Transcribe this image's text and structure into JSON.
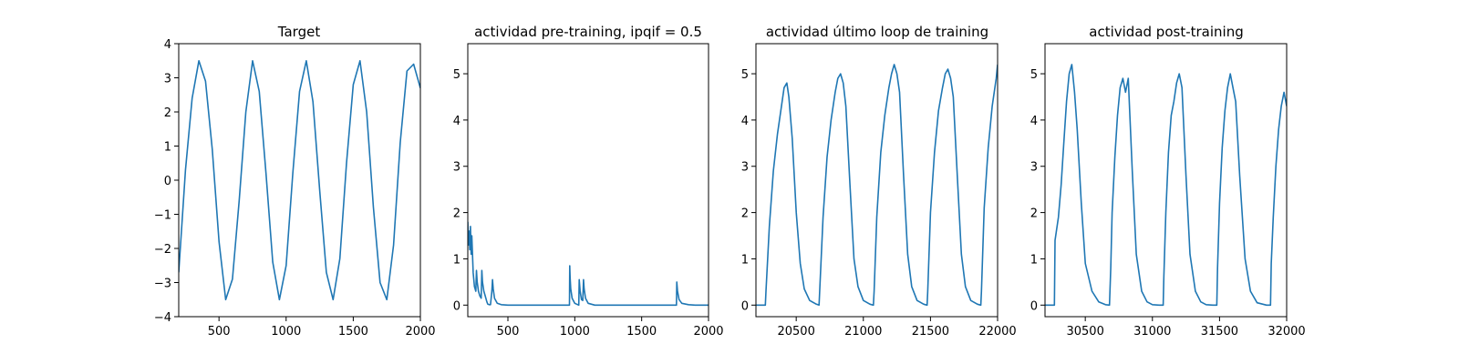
{
  "figure": {
    "background": "#ffffff",
    "line_color": "#1f77b4"
  },
  "chart_data": [
    {
      "type": "line",
      "title": "Target",
      "xlabel": "",
      "ylabel": "",
      "xlim": [
        200,
        2000
      ],
      "ylim": [
        -4,
        4
      ],
      "xticks": [
        500,
        1000,
        1500,
        2000
      ],
      "yticks": [
        -4,
        -3,
        -2,
        -1,
        0,
        1,
        2,
        3,
        4
      ],
      "xtick_labels": [
        "500",
        "1000",
        "1500",
        "2000"
      ],
      "ytick_labels": [
        "−4",
        "−3",
        "−2",
        "−1",
        "0",
        "1",
        "2",
        "3",
        "4"
      ],
      "series": [
        {
          "x": [
            200,
            250,
            300,
            350,
            400,
            450,
            500,
            550,
            600,
            650,
            700,
            750,
            800,
            850,
            900,
            950,
            1000,
            1050,
            1100,
            1150,
            1200,
            1250,
            1300,
            1350,
            1400,
            1450,
            1500,
            1550,
            1600,
            1650,
            1700,
            1750,
            1800,
            1850,
            1900,
            1950,
            2000
          ],
          "y": [
            -2.7,
            0.3,
            2.4,
            3.5,
            2.9,
            0.9,
            -1.8,
            -3.5,
            -2.9,
            -0.6,
            2.0,
            3.5,
            2.6,
            0.2,
            -2.4,
            -3.5,
            -2.5,
            0.2,
            2.6,
            3.5,
            2.3,
            -0.3,
            -2.7,
            -3.5,
            -2.3,
            0.5,
            2.8,
            3.5,
            2.0,
            -0.8,
            -3.0,
            -3.5,
            -1.9,
            1.1,
            3.2,
            3.4,
            2.7
          ]
        }
      ]
    },
    {
      "type": "line",
      "title": "actividad pre-training, ipqif = 0.5",
      "xlabel": "",
      "ylabel": "",
      "xlim": [
        200,
        2000
      ],
      "ylim": [
        -0.25,
        5.65
      ],
      "xticks": [
        500,
        1000,
        1500,
        2000
      ],
      "yticks": [
        0,
        1,
        2,
        3,
        4,
        5
      ],
      "xtick_labels": [
        "500",
        "1000",
        "1500",
        "2000"
      ],
      "ytick_labels": [
        "0",
        "1",
        "2",
        "3",
        "4",
        "5"
      ],
      "series": [
        {
          "x": [
            200,
            205,
            210,
            215,
            220,
            225,
            230,
            240,
            250,
            260,
            265,
            270,
            280,
            290,
            300,
            305,
            310,
            320,
            330,
            340,
            345,
            350,
            360,
            370,
            380,
            385,
            390,
            400,
            420,
            450,
            500,
            600,
            700,
            800,
            900,
            960,
            962,
            965,
            970,
            980,
            1000,
            1030,
            1033,
            1040,
            1050,
            1060,
            1065,
            1070,
            1080,
            1100,
            1150,
            1200,
            1400,
            1600,
            1760,
            1763,
            1768,
            1780,
            1800,
            1850,
            1900,
            2000
          ],
          "y": [
            1.8,
            1.3,
            1.6,
            1.2,
            1.7,
            1.1,
            1.5,
            0.7,
            0.4,
            0.3,
            0.75,
            0.5,
            0.3,
            0.2,
            0.15,
            0.75,
            0.5,
            0.3,
            0.2,
            0.1,
            0.05,
            0.02,
            0.01,
            0.01,
            0.3,
            0.55,
            0.35,
            0.15,
            0.04,
            0.01,
            0.0,
            0.0,
            0.0,
            0.0,
            0.0,
            0.0,
            0.85,
            0.6,
            0.35,
            0.15,
            0.04,
            0.0,
            0.55,
            0.3,
            0.12,
            0.1,
            0.55,
            0.35,
            0.15,
            0.04,
            0.0,
            0.0,
            0.0,
            0.0,
            0.0,
            0.5,
            0.3,
            0.12,
            0.04,
            0.01,
            0.0,
            0.0
          ]
        }
      ]
    },
    {
      "type": "line",
      "title": "actividad último loop de training",
      "xlabel": "",
      "ylabel": "",
      "xlim": [
        20200,
        22000
      ],
      "ylim": [
        -0.25,
        5.65
      ],
      "xticks": [
        20500,
        21000,
        21500,
        22000
      ],
      "yticks": [
        0,
        1,
        2,
        3,
        4,
        5
      ],
      "xtick_labels": [
        "20500",
        "21000",
        "21500",
        "22000"
      ],
      "ytick_labels": [
        "0",
        "1",
        "2",
        "3",
        "4",
        "5"
      ],
      "series": [
        {
          "x": [
            20200,
            20270,
            20275,
            20300,
            20330,
            20360,
            20390,
            20410,
            20430,
            20445,
            20470,
            20500,
            20530,
            20560,
            20600,
            20650,
            20670,
            20675,
            20700,
            20730,
            20760,
            20790,
            20810,
            20830,
            20850,
            20870,
            20900,
            20930,
            20960,
            21000,
            21050,
            21075,
            21080,
            21100,
            21130,
            21160,
            21190,
            21210,
            21230,
            21250,
            21270,
            21300,
            21330,
            21360,
            21400,
            21450,
            21475,
            21480,
            21500,
            21530,
            21560,
            21590,
            21610,
            21630,
            21650,
            21670,
            21700,
            21730,
            21760,
            21800,
            21850,
            21875,
            21880,
            21900,
            21930,
            21960,
            21990,
            22000
          ],
          "y": [
            0.0,
            0.0,
            0.3,
            1.7,
            2.9,
            3.7,
            4.3,
            4.7,
            4.8,
            4.5,
            3.6,
            2.0,
            0.9,
            0.35,
            0.1,
            0.02,
            0.0,
            0.3,
            1.9,
            3.2,
            4.0,
            4.6,
            4.9,
            5.0,
            4.8,
            4.3,
            2.6,
            1.0,
            0.4,
            0.1,
            0.02,
            0.0,
            0.3,
            1.9,
            3.3,
            4.1,
            4.7,
            5.0,
            5.2,
            5.0,
            4.6,
            2.8,
            1.1,
            0.4,
            0.1,
            0.02,
            0.0,
            0.3,
            2.0,
            3.3,
            4.2,
            4.7,
            5.0,
            5.1,
            4.9,
            4.5,
            2.8,
            1.1,
            0.4,
            0.1,
            0.02,
            0.0,
            0.3,
            2.1,
            3.4,
            4.3,
            4.9,
            5.2
          ]
        }
      ]
    },
    {
      "type": "line",
      "title": "actividad post-training",
      "xlabel": "",
      "ylabel": "",
      "xlim": [
        30200,
        32000
      ],
      "ylim": [
        -0.25,
        5.65
      ],
      "xticks": [
        30500,
        31000,
        31500,
        32000
      ],
      "yticks": [
        0,
        1,
        2,
        3,
        4,
        5
      ],
      "xtick_labels": [
        "30500",
        "31000",
        "31500",
        "32000"
      ],
      "ytick_labels": [
        "0",
        "1",
        "2",
        "3",
        "4",
        "5"
      ],
      "series": [
        {
          "x": [
            30200,
            30270,
            30275,
            30300,
            30320,
            30340,
            30360,
            30380,
            30400,
            30420,
            30440,
            30470,
            30500,
            30550,
            30600,
            30650,
            30680,
            30690,
            30700,
            30720,
            30740,
            30760,
            30780,
            30800,
            30820,
            30850,
            30880,
            30920,
            30960,
            31000,
            31050,
            31080,
            31085,
            31100,
            31120,
            31140,
            31160,
            31180,
            31200,
            31220,
            31250,
            31280,
            31320,
            31360,
            31400,
            31450,
            31480,
            31485,
            31500,
            31520,
            31540,
            31560,
            31580,
            31600,
            31620,
            31650,
            31690,
            31730,
            31780,
            31850,
            31880,
            31885,
            31900,
            31920,
            31940,
            31960,
            31980,
            32000
          ],
          "y": [
            0.0,
            0.0,
            1.4,
            1.9,
            2.6,
            3.5,
            4.4,
            5.0,
            5.2,
            4.6,
            3.8,
            2.2,
            0.9,
            0.3,
            0.07,
            0.01,
            0.0,
            0.8,
            2.0,
            3.2,
            4.1,
            4.7,
            4.9,
            4.6,
            4.9,
            2.9,
            1.1,
            0.3,
            0.07,
            0.01,
            0.0,
            0.0,
            0.6,
            2.0,
            3.3,
            4.1,
            4.4,
            4.8,
            5.0,
            4.7,
            2.8,
            1.1,
            0.3,
            0.07,
            0.01,
            0.0,
            0.0,
            0.8,
            2.2,
            3.4,
            4.2,
            4.7,
            5.0,
            4.7,
            4.4,
            2.8,
            1.0,
            0.3,
            0.05,
            0.0,
            0.0,
            0.9,
            1.9,
            3.0,
            3.8,
            4.3,
            4.6,
            4.3
          ]
        }
      ]
    }
  ]
}
